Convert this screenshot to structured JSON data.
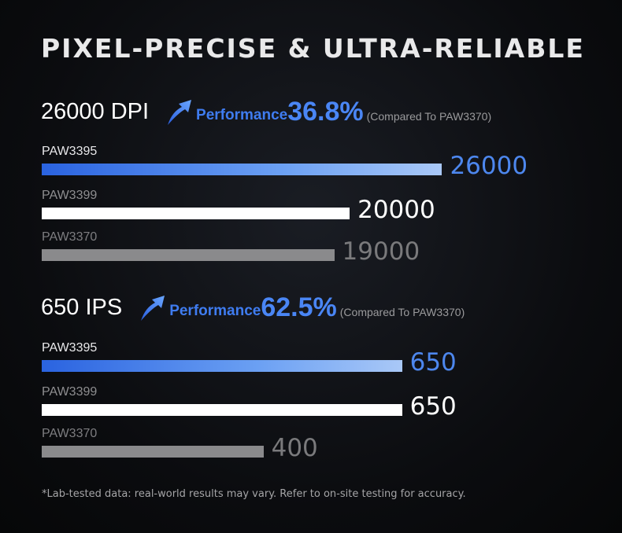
{
  "title": "PIXEL-PRECISE & ULTRA-RELIABLE",
  "footnote": "*Lab-tested data: real-world results may vary. Refer to on-site testing for accuracy.",
  "colors": {
    "accent_blue": "#4a86f5",
    "bar_white": "#ffffff",
    "bar_gray": "#8a8a8c",
    "background": "#0b0c0f"
  },
  "sections": [
    {
      "metric_label": "26000 DPI",
      "icon": "up-arrow-icon",
      "performance_word": "Performance",
      "performance_value": "36.8%",
      "compare_note": "(Compared To PAW3370)"
    },
    {
      "metric_label": "650 IPS",
      "icon": "up-arrow-icon",
      "performance_word": "Performance",
      "performance_value": "62.5%",
      "compare_note": "(Compared To PAW3370)"
    }
  ],
  "chart_data": [
    {
      "type": "bar",
      "orientation": "horizontal",
      "categories": [
        "PAW3395",
        "PAW3399",
        "PAW3370"
      ],
      "values": [
        26000,
        20000,
        19000
      ],
      "value_labels": [
        "26000",
        "20000",
        "19000"
      ],
      "xlim": [
        0,
        36000
      ]
    },
    {
      "type": "bar",
      "orientation": "horizontal",
      "categories": [
        "PAW3395",
        "PAW3399",
        "PAW3370"
      ],
      "values": [
        650,
        650,
        400
      ],
      "value_labels": [
        "650",
        "650",
        "400"
      ],
      "xlim": [
        0,
        1000
      ]
    }
  ]
}
